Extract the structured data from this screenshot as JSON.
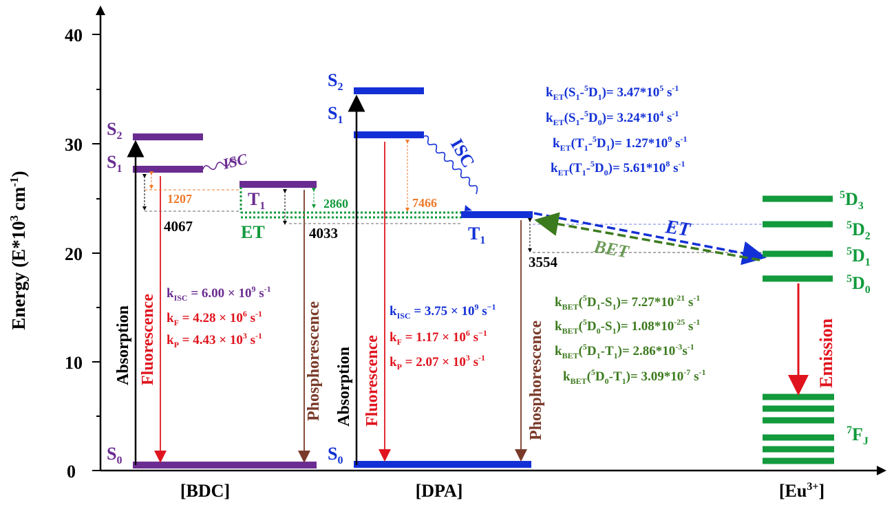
{
  "axis": {
    "y_label": "Energy (E*10",
    "y_label_sup": "3",
    "y_label_tail": " cm",
    "y_label_sup2": "-1",
    "y_label_end": ")",
    "ticks": [
      "0",
      "10",
      "20",
      "30",
      "40"
    ],
    "columns": {
      "bdc": "[BDC]",
      "dpa": "[DPA]",
      "eu": "[Eu",
      "eu_sup": "3+",
      "eu_end": "]"
    }
  },
  "bdc": {
    "S2": "S",
    "S2_sub": "2",
    "S1": "S",
    "S1_sub": "1",
    "S0": "S",
    "S0_sub": "0",
    "T1": "T",
    "T1_sub": "1",
    "isc": "ISC",
    "gap_orange": "1207",
    "gap_black_left": "4067",
    "gap_black_right": "4033",
    "et": "ET",
    "gap_green": "2860",
    "absorption": "Absorption",
    "fluorescence": "Fluorescence",
    "phosphorescence": "Phosphorescence",
    "k_isc": {
      "pre": "k",
      "sub": "ISC",
      "post": " = 6.00 × 10",
      "exp": "9",
      "unit": " s",
      "uexp": "-1"
    },
    "k_f": {
      "pre": "k",
      "sub": "F",
      "post": " = 4.28 × 10",
      "exp": "6",
      "unit": " s",
      "uexp": "-1"
    },
    "k_p": {
      "pre": "k",
      "sub": "P",
      "post": " = 4.43 × 10",
      "exp": "3",
      "unit": " s",
      "uexp": "-1"
    }
  },
  "dpa": {
    "S2": "S",
    "S2_sub": "2",
    "S1": "S",
    "S1_sub": "1",
    "S0": "S",
    "S0_sub": "0",
    "T1": "T",
    "T1_sub": "1",
    "isc": "ISC",
    "gap_orange": "7466",
    "gap_black": "3554",
    "absorption": "Absorption",
    "fluorescence": "Fluorescence",
    "phosphorescence": "Phosphorescence",
    "k_isc": {
      "pre": "k",
      "sub": "ISC",
      "post": " = 3.75 × 10",
      "exp": "9",
      "unit": " s",
      "uexp": "−1"
    },
    "k_f": {
      "pre": "k",
      "sub": "F",
      "post": " = 1.17 × 10",
      "exp": "6",
      "unit": " s",
      "uexp": "−1"
    },
    "k_p": {
      "pre": "k",
      "sub": "P",
      "post": " = 2.07 × 10",
      "exp": "3",
      "unit": " s",
      "uexp": "-1"
    }
  },
  "eu": {
    "d3": "D",
    "d3_pre": "5",
    "d3_sub": "3",
    "d2": "D",
    "d2_pre": "5",
    "d2_sub": "2",
    "d1": "D",
    "d1_pre": "5",
    "d1_sub": "1",
    "d0": "D",
    "d0_pre": "5",
    "d0_sub": "0",
    "fj": "F",
    "fj_pre": "7",
    "fj_sub": "J",
    "emission": "Emission"
  },
  "transfer": {
    "et": "ET",
    "bet": "BET"
  },
  "k_et": [
    {
      "a": "k",
      "b": "ET",
      "c": "(S",
      "d": "1",
      "e": "-",
      "f": "5",
      "g": "D",
      "h": "1",
      "i": ")= 3.47*10",
      "j": "5",
      "k": " s",
      "l": "-1"
    },
    {
      "a": "k",
      "b": "ET",
      "c": "(S",
      "d": "1",
      "e": "-",
      "f": "5",
      "g": "D",
      "h": "0",
      "i": ")= 3.24*10",
      "j": "4",
      "k": " s",
      "l": "-1"
    },
    {
      "a": "k",
      "b": "ET",
      "c": "(T",
      "d": "1",
      "e": "-",
      "f": "5",
      "g": "D",
      "h": "1",
      "i": ")= 1.27*10",
      "j": "9",
      "k": " s",
      "l": "-1"
    },
    {
      "a": "k",
      "b": "ET",
      "c": "(T",
      "d": "1",
      "e": "-",
      "f": "5",
      "g": "D",
      "h": "0",
      "i": ")= 5.61*10",
      "j": "8",
      "k": " s",
      "l": "-1"
    }
  ],
  "k_bet": [
    {
      "a": "k",
      "b": "BET",
      "c": "(",
      "d": "5",
      "e": "D",
      "f": "1",
      "g": "-S",
      "h": "1",
      "i": ")= 7.27*10",
      "j": "-21",
      "k": " s",
      "l": "-1"
    },
    {
      "a": "k",
      "b": "BET",
      "c": "(",
      "d": "5",
      "e": "D",
      "f": "0",
      "g": "-S",
      "h": "1",
      "i": ")= 1.08*10",
      "j": "-25",
      "k": " s",
      "l": "-1"
    },
    {
      "a": "k",
      "b": "BET",
      "c": "(",
      "d": "5",
      "e": "D",
      "f": "1",
      "g": "-T",
      "h": "1",
      "i": ")= 2.86*10",
      "j": "-3",
      "k": "s",
      "l": "-1"
    },
    {
      "a": "k",
      "b": "BET",
      "c": "(",
      "d": "5",
      "e": "D",
      "f": "0",
      "g": "-T",
      "h": "1",
      "i": ")= 3.09*10",
      "j": "-7",
      "k": " s",
      "l": "-1"
    }
  ],
  "colors": {
    "purple": "#6a2c91",
    "blue": "#1330d6",
    "green": "#129a3c",
    "darkgreen": "#3c7a1e",
    "red": "#e0141e",
    "brown": "#7a3a2a",
    "orange": "#ef7a2a",
    "black": "#000000"
  }
}
